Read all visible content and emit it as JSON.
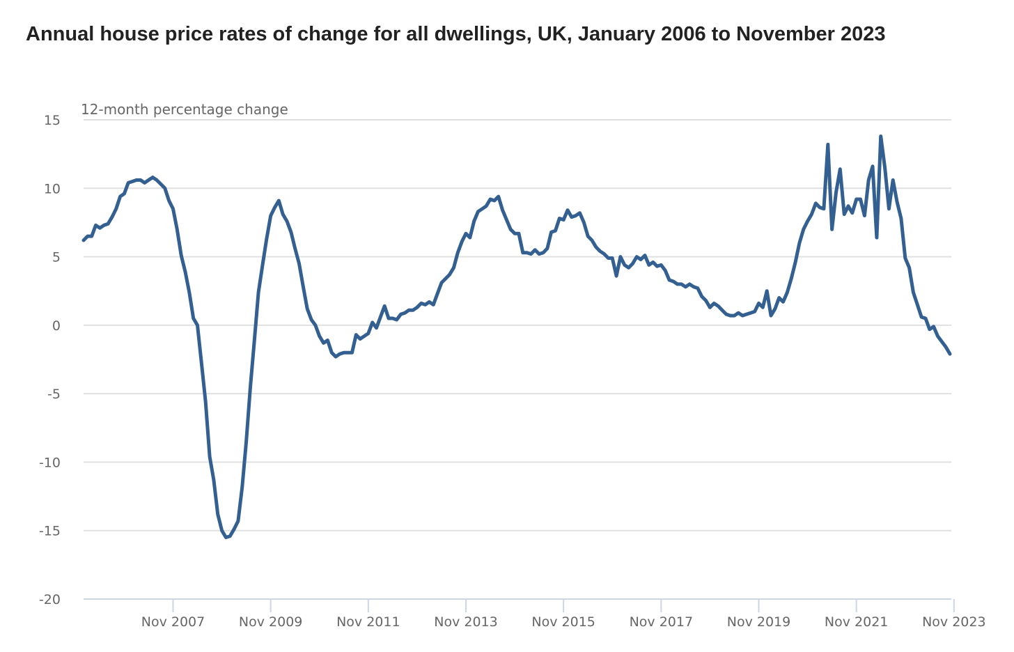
{
  "chart_data": {
    "type": "line",
    "title": "Annual house price rates of change for all dwellings, UK, January 2006 to November 2023",
    "xlabel": "",
    "ylabel": "12-month percentage change",
    "ylim": [
      -20,
      15
    ],
    "yticks": [
      15,
      10,
      5,
      0,
      -5,
      -10,
      -15,
      -20
    ],
    "ytick_labels": [
      "15",
      "10",
      "5",
      "0",
      "-5",
      "-10",
      "-15",
      "-20"
    ],
    "x_start": "Jan 2006",
    "x_end": "Nov 2023",
    "xtick_labels": [
      "Nov 2007",
      "Nov 2009",
      "Nov 2011",
      "Nov 2013",
      "Nov 2015",
      "Nov 2017",
      "Nov 2019",
      "Nov 2021",
      "Nov 2023"
    ],
    "xtick_month_index": [
      22,
      46,
      70,
      94,
      118,
      142,
      166,
      190,
      214
    ],
    "grid": true,
    "line_color": "#335f91",
    "series": [
      {
        "name": "All dwellings, UK",
        "values": [
          6.2,
          6.5,
          6.5,
          7.3,
          7.1,
          7.3,
          7.4,
          7.9,
          8.5,
          9.4,
          9.6,
          10.4,
          10.5,
          10.6,
          10.6,
          10.4,
          10.6,
          10.8,
          10.6,
          10.3,
          10.0,
          9.1,
          8.5,
          7.0,
          5.1,
          3.9,
          2.4,
          0.5,
          0.0,
          -2.8,
          -5.6,
          -9.6,
          -11.3,
          -13.8,
          -15.0,
          -15.5,
          -15.4,
          -14.9,
          -14.3,
          -11.8,
          -8.5,
          -4.5,
          -1.1,
          2.4,
          4.4,
          6.3,
          8.0,
          8.6,
          9.1,
          8.1,
          7.6,
          6.8,
          5.6,
          4.5,
          2.8,
          1.2,
          0.4,
          0.0,
          -0.8,
          -1.3,
          -1.1,
          -2.0,
          -2.3,
          -2.1,
          -2.0,
          -2.0,
          -2.0,
          -0.7,
          -1.0,
          -0.8,
          -0.6,
          0.2,
          -0.2,
          0.6,
          1.4,
          0.5,
          0.5,
          0.4,
          0.8,
          0.9,
          1.1,
          1.1,
          1.3,
          1.6,
          1.5,
          1.7,
          1.5,
          2.3,
          3.1,
          3.4,
          3.7,
          4.2,
          5.3,
          6.1,
          6.7,
          6.4,
          7.6,
          8.3,
          8.5,
          8.7,
          9.2,
          9.1,
          9.4,
          8.4,
          7.7,
          7.0,
          6.7,
          6.7,
          5.3,
          5.3,
          5.2,
          5.5,
          5.2,
          5.3,
          5.6,
          6.8,
          6.9,
          7.8,
          7.7,
          8.4,
          7.9,
          8.0,
          8.2,
          7.5,
          6.5,
          6.2,
          5.7,
          5.4,
          5.2,
          4.9,
          4.9,
          3.6,
          5.0,
          4.4,
          4.2,
          4.5,
          5.0,
          4.8,
          5.1,
          4.4,
          4.6,
          4.3,
          4.4,
          4.0,
          3.3,
          3.2,
          3.0,
          3.0,
          2.8,
          3.0,
          2.8,
          2.7,
          2.1,
          1.8,
          1.3,
          1.6,
          1.4,
          1.1,
          0.8,
          0.7,
          0.7,
          0.9,
          0.7,
          0.8,
          0.9,
          1.0,
          1.6,
          1.3,
          2.5,
          0.7,
          1.2,
          2.0,
          1.7,
          2.4,
          3.4,
          4.6,
          6.0,
          7.0,
          7.6,
          8.1,
          8.9,
          8.6,
          8.5,
          13.2,
          7.0,
          9.7,
          11.4,
          8.1,
          8.7,
          8.2,
          9.2,
          9.2,
          8.0,
          10.6,
          11.6,
          6.4,
          13.8,
          11.5,
          8.5,
          10.6,
          9.0,
          7.8,
          4.9,
          4.2,
          2.4,
          1.5,
          0.6,
          0.5,
          -0.3,
          -0.1,
          -0.8,
          -1.2,
          -1.6,
          -2.1
        ]
      }
    ]
  }
}
